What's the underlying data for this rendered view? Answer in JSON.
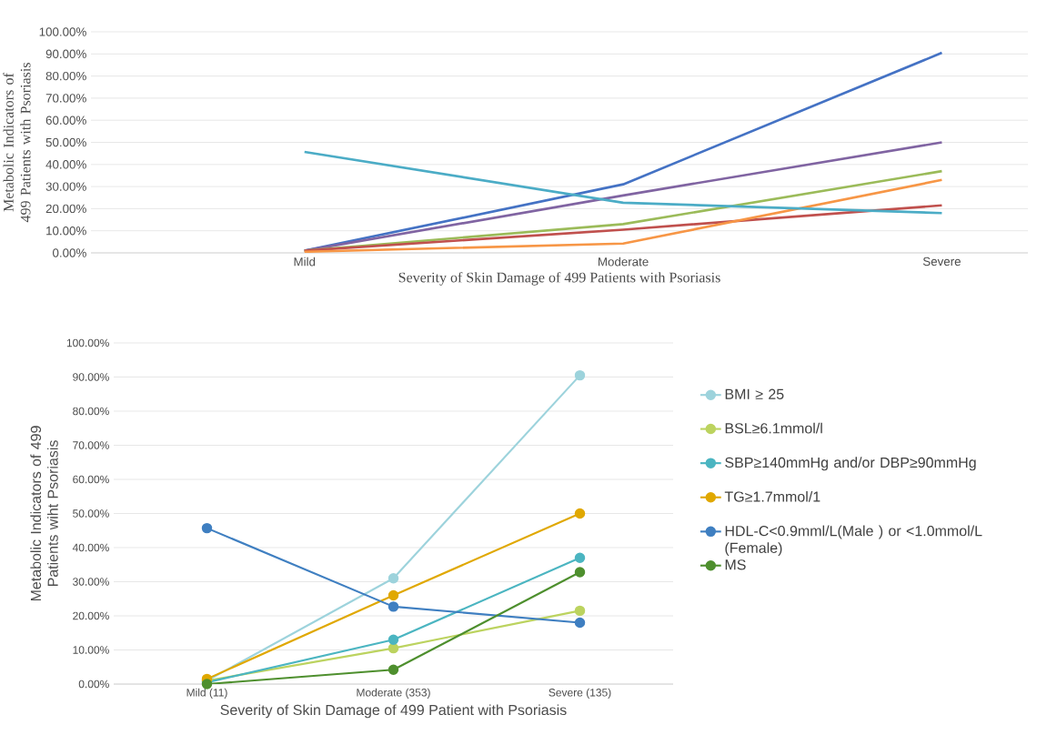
{
  "chart_data": [
    {
      "type": "line",
      "xlabel": "Severity of Skin Damage of 499 Patients with Psoriasis",
      "ylabel": "Metabolic Indicators of 499 Patients with Psoriasis",
      "categories": [
        "Mild",
        "Moderate",
        "Severe"
      ],
      "series": [
        {
          "color": "#4472c4",
          "values": [
            1,
            31,
            90.5
          ]
        },
        {
          "color": "#8064a2",
          "values": [
            1,
            26,
            50
          ]
        },
        {
          "color": "#9bbb59",
          "values": [
            1,
            13,
            37
          ]
        },
        {
          "color": "#c0504d",
          "values": [
            1,
            10.5,
            21.5
          ]
        },
        {
          "color": "#f79646",
          "values": [
            0.5,
            4.2,
            33
          ]
        },
        {
          "color": "#4bacc6",
          "values": [
            45.7,
            22.7,
            18
          ]
        }
      ],
      "ylim": [
        0,
        100
      ],
      "yticks": [
        {
          "value": 0,
          "label": "0.00%"
        },
        {
          "value": 10,
          "label": "10.00%"
        },
        {
          "value": 20,
          "label": "20.00%"
        },
        {
          "value": 30,
          "label": "30.00%"
        },
        {
          "value": 40,
          "label": "40.00%"
        },
        {
          "value": 50,
          "label": "50.00%"
        },
        {
          "value": 60,
          "label": "60.00%"
        },
        {
          "value": 70,
          "label": "70.00%"
        },
        {
          "value": 80,
          "label": "80.00%"
        },
        {
          "value": 90,
          "label": "90.00%"
        },
        {
          "value": 100,
          "label": "100.00%"
        }
      ],
      "grid": "y"
    },
    {
      "type": "line",
      "xlabel": "Severity of Skin Damage of 499 Patient with Psoriasis",
      "ylabel": "Metabolic Indicators of 499 Patients wiht Psoriasis",
      "categories": [
        "Mild (11)",
        "Moderate (353)",
        "Severe (135)"
      ],
      "series": [
        {
          "name": "BMI ≥ 25",
          "color": "#9dd3dc",
          "values": [
            1,
            31,
            90.5
          ]
        },
        {
          "name": "BSL≥6.1mmol/l",
          "color": "#bcd35f",
          "values": [
            1,
            10.5,
            21.5
          ]
        },
        {
          "name": "SBP≥140mmHg and/or DBP≥90mmHg",
          "color": "#4bb5c1",
          "values": [
            0.5,
            13,
            37
          ]
        },
        {
          "name": "TG≥1.7mmol/1",
          "color": "#e0a800",
          "values": [
            1.5,
            26,
            50
          ]
        },
        {
          "name": "HDL-C<0.9mml/L(Male ) or <1.0mmol/L (Female)",
          "color": "#3f7fc1",
          "values": [
            45.7,
            22.7,
            18
          ]
        },
        {
          "name": "MS",
          "color": "#4e8f2e",
          "values": [
            0,
            4.2,
            32.8
          ]
        }
      ],
      "ylim": [
        0,
        100
      ],
      "yticks": [
        {
          "value": 0,
          "label": "0.00%"
        },
        {
          "value": 10,
          "label": "10.00%"
        },
        {
          "value": 20,
          "label": "20.00%"
        },
        {
          "value": 30,
          "label": "30.00%"
        },
        {
          "value": 40,
          "label": "40.00%"
        },
        {
          "value": 50,
          "label": "50.00%"
        },
        {
          "value": 60,
          "label": "60.00%"
        },
        {
          "value": 70,
          "label": "70.00%"
        },
        {
          "value": 80,
          "label": "80.00%"
        },
        {
          "value": 90,
          "label": "90.00%"
        },
        {
          "value": 100,
          "label": "100.00%"
        }
      ],
      "grid": "y",
      "marker": "circle",
      "legend": "right"
    }
  ]
}
